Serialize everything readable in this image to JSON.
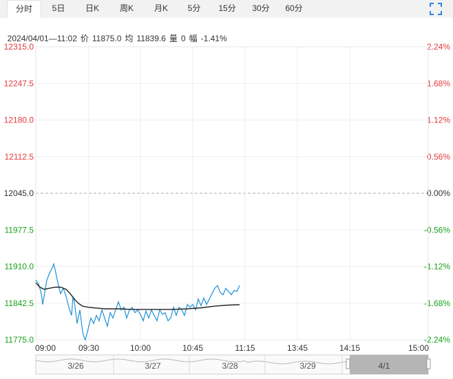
{
  "tabs": [
    {
      "label": "分时",
      "active": true
    },
    {
      "label": "5日"
    },
    {
      "label": "日K"
    },
    {
      "label": "周K"
    },
    {
      "label": "月K"
    },
    {
      "label": "5分"
    },
    {
      "label": "15分"
    },
    {
      "label": "30分"
    },
    {
      "label": "60分"
    }
  ],
  "info": {
    "datetime": "2024/04/01—11:02",
    "price_label": "价",
    "price": "11875.0",
    "avg_label": "均",
    "avg": "11839.6",
    "vol_label": "量",
    "vol": "0",
    "chg_label": "幅",
    "chg": "-1.41%"
  },
  "colors": {
    "up": "#e4393c",
    "down": "#1aa11a",
    "price_line": "#1e90d6",
    "avg_line": "#222222",
    "grid": "#eeeeee",
    "baseline": "#aaaaaa"
  },
  "chart_data": {
    "type": "line",
    "ylim": [
      11775.0,
      12315.0
    ],
    "prev_close": 12045.0,
    "y_ticks_left": [
      "12315.0",
      "12247.5",
      "12180.0",
      "12112.5",
      "12045.0",
      "11977.5",
      "11910.0",
      "11842.5",
      "11775.0"
    ],
    "y_ticks_right": [
      "2.24%",
      "1.68%",
      "1.12%",
      "0.56%",
      "0.00%",
      "-0.56%",
      "-1.12%",
      "-1.68%",
      "-2.24%"
    ],
    "x_ticks": [
      "09:00",
      "09:30",
      "10:00",
      "10:45",
      "11:15",
      "13:45",
      "14:15",
      "15:00"
    ],
    "session_minutes": 285,
    "series": [
      {
        "role": "price",
        "values": [
          [
            0,
            11885
          ],
          [
            2,
            11878
          ],
          [
            4,
            11860
          ],
          [
            5,
            11840
          ],
          [
            6,
            11855
          ],
          [
            8,
            11885
          ],
          [
            10,
            11898
          ],
          [
            12,
            11908
          ],
          [
            13,
            11915
          ],
          [
            14,
            11905
          ],
          [
            16,
            11880
          ],
          [
            18,
            11860
          ],
          [
            20,
            11870
          ],
          [
            22,
            11855
          ],
          [
            24,
            11835
          ],
          [
            26,
            11820
          ],
          [
            27,
            11855
          ],
          [
            28,
            11845
          ],
          [
            30,
            11805
          ],
          [
            32,
            11830
          ],
          [
            34,
            11790
          ],
          [
            35,
            11780
          ],
          [
            36,
            11775
          ],
          [
            38,
            11795
          ],
          [
            40,
            11815
          ],
          [
            42,
            11805
          ],
          [
            44,
            11820
          ],
          [
            46,
            11810
          ],
          [
            48,
            11830
          ],
          [
            50,
            11815
          ],
          [
            52,
            11800
          ],
          [
            54,
            11825
          ],
          [
            56,
            11815
          ],
          [
            58,
            11830
          ],
          [
            60,
            11845
          ],
          [
            62,
            11830
          ],
          [
            64,
            11835
          ],
          [
            66,
            11815
          ],
          [
            68,
            11830
          ],
          [
            70,
            11835
          ],
          [
            72,
            11825
          ],
          [
            74,
            11830
          ],
          [
            76,
            11822
          ],
          [
            78,
            11810
          ],
          [
            80,
            11828
          ],
          [
            82,
            11815
          ],
          [
            84,
            11830
          ],
          [
            86,
            11820
          ],
          [
            88,
            11810
          ],
          [
            90,
            11830
          ],
          [
            92,
            11822
          ],
          [
            94,
            11825
          ],
          [
            96,
            11810
          ],
          [
            98,
            11815
          ],
          [
            100,
            11835
          ],
          [
            102,
            11820
          ],
          [
            104,
            11835
          ],
          [
            106,
            11830
          ],
          [
            108,
            11820
          ],
          [
            110,
            11840
          ],
          [
            112,
            11835
          ],
          [
            114,
            11840
          ],
          [
            116,
            11830
          ],
          [
            118,
            11850
          ],
          [
            120,
            11838
          ],
          [
            122,
            11852
          ],
          [
            124,
            11840
          ],
          [
            126,
            11850
          ],
          [
            128,
            11860
          ],
          [
            130,
            11870
          ],
          [
            132,
            11875
          ],
          [
            134,
            11862
          ],
          [
            136,
            11858
          ],
          [
            138,
            11870
          ],
          [
            140,
            11864
          ],
          [
            142,
            11858
          ],
          [
            144,
            11866
          ],
          [
            146,
            11864
          ],
          [
            148,
            11875
          ]
        ]
      },
      {
        "role": "avg",
        "values": [
          [
            0,
            11880
          ],
          [
            3,
            11872
          ],
          [
            6,
            11868
          ],
          [
            10,
            11870
          ],
          [
            14,
            11872
          ],
          [
            18,
            11872
          ],
          [
            22,
            11868
          ],
          [
            25,
            11860
          ],
          [
            28,
            11850
          ],
          [
            31,
            11842
          ],
          [
            34,
            11837
          ],
          [
            38,
            11835
          ],
          [
            42,
            11834
          ],
          [
            46,
            11833
          ],
          [
            50,
            11832
          ],
          [
            60,
            11832
          ],
          [
            70,
            11831
          ],
          [
            80,
            11831
          ],
          [
            90,
            11831
          ],
          [
            100,
            11831
          ],
          [
            110,
            11832
          ],
          [
            120,
            11834
          ],
          [
            130,
            11837
          ],
          [
            140,
            11839
          ],
          [
            148,
            11839.6
          ]
        ]
      }
    ],
    "navigator": {
      "dates": [
        "3/26",
        "3/27",
        "3/28",
        "3/29",
        "4/1"
      ],
      "selected": "4/1"
    }
  }
}
